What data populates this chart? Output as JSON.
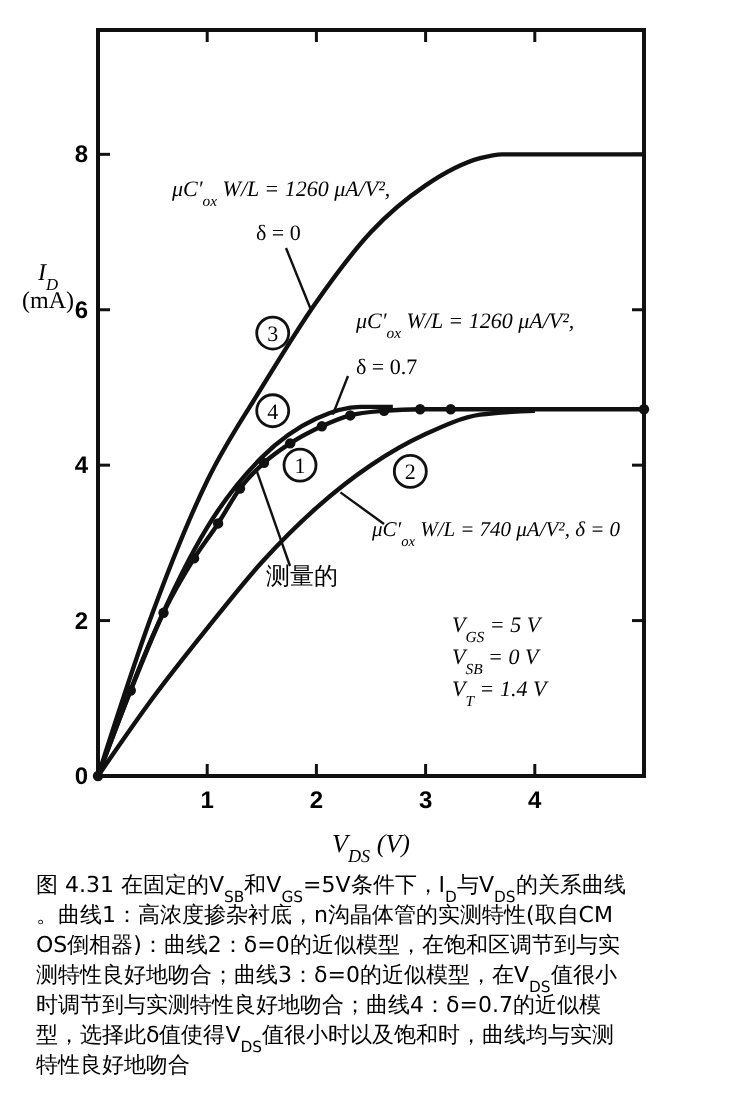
{
  "chart_data": {
    "type": "line",
    "xlabel": "V$_{DS}$ (V)",
    "ylabel": "I$_{D}$ (mA)",
    "xlim": [
      0,
      5
    ],
    "ylim": [
      0,
      9.6
    ],
    "xticks": [
      1,
      2,
      3,
      4
    ],
    "yticks": [
      0,
      2,
      4,
      6,
      8
    ],
    "grid": false,
    "marker": "none",
    "line_style": "solid",
    "series": [
      {
        "name": "1",
        "color": "#111111",
        "marker": "circle",
        "x": [
          0,
          0.3,
          0.6,
          0.88,
          1.1,
          1.3,
          1.52,
          1.76,
          2.05,
          2.31,
          2.62,
          2.95,
          3.23,
          5
        ],
        "values": [
          0,
          1.1,
          2.1,
          2.8,
          3.25,
          3.7,
          4.03,
          4.28,
          4.5,
          4.64,
          4.7,
          4.72,
          4.72,
          4.72
        ]
      },
      {
        "name": "2",
        "color": "#111111",
        "x": [
          0,
          0.5,
          1,
          1.5,
          2,
          2.5,
          3,
          3.5,
          4
        ],
        "values": [
          0,
          1.0,
          1.9,
          2.75,
          3.45,
          4.0,
          4.4,
          4.65,
          4.7
        ]
      },
      {
        "name": "3",
        "color": "#111111",
        "x": [
          0,
          0.5,
          1,
          1.5,
          2,
          2.5,
          3,
          3.5,
          3.7,
          5
        ],
        "values": [
          0,
          2.1,
          3.8,
          5.0,
          6.1,
          7.0,
          7.6,
          7.95,
          8.0,
          8.0
        ]
      },
      {
        "name": "4",
        "color": "#111111",
        "x": [
          0,
          0.5,
          1,
          1.5,
          2,
          2.4,
          2.7
        ],
        "values": [
          0,
          1.8,
          3.2,
          4.1,
          4.6,
          4.75,
          4.75
        ]
      }
    ],
    "annotations": [
      "μC′$_{ox}$ W/L = 1260 μA/V²,",
      {
        "text": "δ = 0",
        "x": 1.95,
        "y": 6.0
      },
      "μC′$_{ox}$ W/L = 1260 μA/V²,",
      {
        "text": "δ = 0.7",
        "x": 2.15,
        "y": 4.65
      },
      {
        "text": "μC′$_{ox}$ W/L = 740 μA/V², δ = 0",
        "x": 2.22,
        "y": 3.65
      },
      {
        "text": "测量的",
        "x": 1.45,
        "y": 3.94
      },
      "V$_{GS}$ = 5 V",
      "V$_{SB}$ = 0 V",
      "V$_{T}$ = 1.4 V",
      "图 4.31 在固定的V$_{SB}$和V$_{GS}$=5V条件下，I$_{D}$与V$_{DS}$的关系曲线。曲线1：高浓度掺杂衬底，n沟晶体管的实测特性(取自CMOS倒相器)：曲线2：δ=0的近似模型，在饱和区调节到与实测特性良好地吻合；曲线3：δ=0的近似模型，在V$_{DS}$值很小时调节到与实测特性良好地吻合；曲线4：δ=0.7的近似模型，选择此δ值使得V$_{DS}$值很小时以及饱和时，曲线均与实测特性良好地吻合"
    ]
  }
}
